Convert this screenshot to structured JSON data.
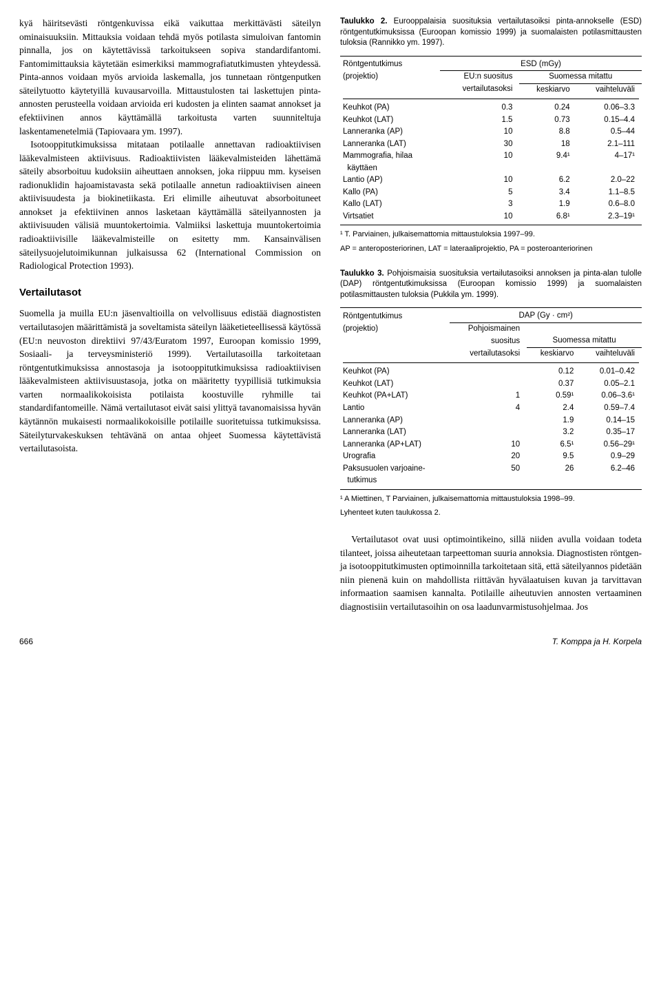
{
  "left": {
    "para1": "kyä häiritsevästi röntgenkuvissa eikä vaikuttaa merkittävästi säteilyn ominaisuuksiin. Mittauksia voidaan tehdä myös potilasta simuloivan fantomin pinnalla, jos on käytettävissä tarkoitukseen sopiva standardifantomi. Fantomimittauksia käytetään esimerkiksi mammografiatutkimusten yhteydessä. Pinta-annos voidaan myös arvioida laskemalla, jos tunnetaan röntgenputken säteilytuotto käytetyillä kuvausarvoilla. Mittaustulosten tai laskettujen pinta-annosten perusteella voidaan arvioida eri kudosten ja elinten saamat annokset ja efektiivinen annos käyttämällä tarkoitusta varten suunniteltuja laskentamenetelmiä (Tapiovaara ym. 1997).",
    "para2": "Isotooppitutkimuksissa mitataan potilaalle annettavan radioaktiivisen lääkevalmisteen aktiivisuus. Radioaktiivisten lääkevalmisteiden lähettämä säteily absorboituu kudoksiin aiheuttaen annoksen, joka riippuu mm. kyseisen radionuklidin hajoamistavasta sekä potilaalle annetun radioaktiivisen aineen aktiivisuudesta ja biokinetiikasta. Eri elimille aiheutuvat absorboituneet annokset ja efektiivinen annos lasketaan käyttämällä säteilyannosten ja aktiivisuuden välisiä muuntokertoimia. Valmiiksi laskettuja muuntokertoimia radioaktiivisille lääkevalmisteille on esitetty mm. Kansainvälisen säteilysuojelutoimikunnan julkaisussa 62 (International Commission on Radiological Protection 1993).",
    "section_title": "Vertailutasot",
    "para3": "Suomella ja muilla EU:n jäsenvaltioilla on velvollisuus edistää diagnostisten vertailutasojen määrittämistä ja soveltamista säteilyn lääketieteel­lisessä käytössä (EU:n neuvoston direktiivi 97/43/Euratom 1997, Euroopan komissio 1999, Sosiaali- ja terveysministeriö 1999). Vertailutasoilla tarkoitetaan röntgentutkimuksissa annostasoja ja isotooppitutkimuksissa radioaktiivisen lääkevalmisteen aktiivisuustasoja, jotka on määritetty tyypillisiä tutkimuksia varten normaalikokoisista potilaista koostuville ryhmille tai standardifantomeille. Nämä vertailutasot eivät saisi ylittyä tavanomaisissa hyvän käytännön mukaisesti normaalikokoisille potilaille suoritetuissa tutkimuksissa. Säteilyturvakeskuksen tehtävänä on antaa ohjeet Suomessa käytettävistä vertailutasoista."
  },
  "table2": {
    "caption_bold": "Taulukko 2.",
    "caption_text": " Eurooppalaisia suosituksia vertailutasoiksi pinta-annokselle (ESD) röntgentutkimuksissa (Euroopan komissio 1999) ja suomalaisten potilasmittausten tuloksia (Rannikko ym. 1997).",
    "h_col1": "Röntgentutkimus",
    "h_col1b": "(projektio)",
    "h_esd": "ESD (mGy)",
    "h_eu1": "EU:n suositus",
    "h_eu2": "vertailutasoksi",
    "h_sm": "Suomessa mitattu",
    "h_mean": "keskiarvo",
    "h_range": "vaihteluväli",
    "rows": [
      {
        "label": "Keuhkot (PA)",
        "eu": "0.3",
        "mean": "0.24",
        "range": "0.06–3.3"
      },
      {
        "label": "Keuhkot (LAT)",
        "eu": "1.5",
        "mean": "0.73",
        "range": "0.15–4.4"
      },
      {
        "label": "Lanneranka (AP)",
        "eu": "10",
        "mean": "8.8",
        "range": "0.5–44"
      },
      {
        "label": "Lanneranka (LAT)",
        "eu": "30",
        "mean": "18",
        "range": "2.1–111"
      },
      {
        "label": "Mammografia, hilaa",
        "eu": "10",
        "mean": "9.4¹",
        "range": "4–17¹"
      },
      {
        "label": "  käyttäen",
        "eu": "",
        "mean": "",
        "range": ""
      },
      {
        "label": "Lantio (AP)",
        "eu": "10",
        "mean": "6.2",
        "range": "2.0–22"
      },
      {
        "label": "Kallo (PA)",
        "eu": "5",
        "mean": "3.4",
        "range": "1.1–8.5"
      },
      {
        "label": "Kallo (LAT)",
        "eu": "3",
        "mean": "1.9",
        "range": "0.6–8.0"
      },
      {
        "label": "Virtsatiet",
        "eu": "10",
        "mean": "6.8¹",
        "range": "2.3–19¹"
      }
    ],
    "footnote1": "¹ T. Parviainen, julkaisemattomia mittaustuloksia 1997–99.",
    "footnote2": "AP = anteroposteriorinen, LAT = lateraaliprojektio, PA = posteroanteriorinen"
  },
  "table3": {
    "caption_bold": "Taulukko 3.",
    "caption_text": " Pohjoismaisia suosituksia vertailutasoiksi annoksen ja pinta-alan tulolle (DAP) röntgentutkimuksissa (Euroopan komissio 1999) ja suomalaisten potilasmittausten tuloksia (Pukkila ym. 1999).",
    "h_col1": "Röntgentutkimus",
    "h_col1b": "(projektio)",
    "h_dap": "DAP (Gy · cm²)",
    "h_p1": "Pohjoismainen",
    "h_p2": "suositus",
    "h_p3": "vertailutasoksi",
    "h_sm": "Suomessa mitattu",
    "h_mean": "keskiarvo",
    "h_range": "vaihteluväli",
    "rows": [
      {
        "label": "Keuhkot (PA)",
        "rec": "",
        "mean": "0.12",
        "range": "0.01–0.42"
      },
      {
        "label": "Keuhkot (LAT)",
        "rec": "",
        "mean": "0.37",
        "range": "0.05–2.1"
      },
      {
        "label": "Keuhkot (PA+LAT)",
        "rec": "1",
        "mean": "0.59¹",
        "range": "0.06–3.6¹"
      },
      {
        "label": "Lantio",
        "rec": "4",
        "mean": "2.4",
        "range": "0.59–7.4"
      },
      {
        "label": "Lanneranka (AP)",
        "rec": "",
        "mean": "1.9",
        "range": "0.14–15"
      },
      {
        "label": "Lanneranka (LAT)",
        "rec": "",
        "mean": "3.2",
        "range": "0.35–17"
      },
      {
        "label": "Lanneranka (AP+LAT)",
        "rec": "10",
        "mean": "6.5¹",
        "range": "0.56–29¹"
      },
      {
        "label": "Urografia",
        "rec": "20",
        "mean": "9.5",
        "range": "0.9–29"
      },
      {
        "label": "Paksusuolen varjoaine-",
        "rec": "50",
        "mean": "26",
        "range": "6.2–46"
      },
      {
        "label": "  tutkimus",
        "rec": "",
        "mean": "",
        "range": ""
      }
    ],
    "footnote1": "¹ A Miettinen, T Parviainen, julkaisemattomia mittaustuloksia 1998–99.",
    "footnote2": "Lyhenteet kuten taulukossa 2."
  },
  "right_para": "Vertailutasot ovat uusi optimointikeino, sillä niiden avulla voidaan todeta tilanteet, joissa aiheutetaan tarpeettoman suuria annoksia. Diagnostisten röntgen- ja isotooppitutkimusten optimoinnilla tarkoitetaan sitä, että säteilyannos pidetään niin pienenä kuin on mahdollista riittävän hyvälaatuisen kuvan ja tarvittavan informaation saamisen kannalta. Potilaille aiheutuvien annosten vertaaminen diagnostisiin vertailutasoihin on osa laadunvarmistusohjelmaa. Jos",
  "footer": {
    "page": "666",
    "authors": "T. Komppa ja H. Korpela"
  }
}
